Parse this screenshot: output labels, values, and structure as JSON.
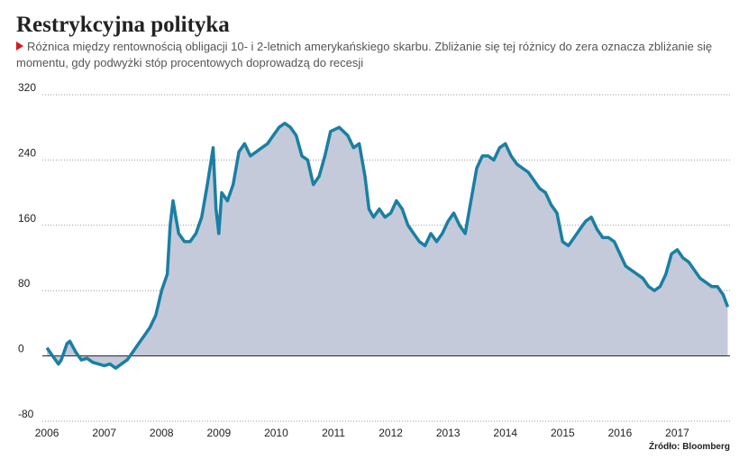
{
  "chart_data": {
    "type": "area",
    "title": "Restrykcyjna polityka",
    "subtitle": "Różnica między rentownością obligacji 10- i 2-letnich amerykańskiego skarbu. Zbliżanie się tej różnicy do zera oznacza zbliżanie się momentu, gdy podwyżki stóp procentowych doprowadzą do recesji",
    "source": "Źródło: Bloomberg",
    "x": [
      2006.0,
      2006.1,
      2006.2,
      2006.25,
      2006.35,
      2006.4,
      2006.5,
      2006.6,
      2006.7,
      2006.8,
      2006.9,
      2007.0,
      2007.1,
      2007.2,
      2007.3,
      2007.4,
      2007.5,
      2007.6,
      2007.7,
      2007.8,
      2007.9,
      2008.0,
      2008.1,
      2008.15,
      2008.2,
      2008.25,
      2008.3,
      2008.4,
      2008.5,
      2008.6,
      2008.7,
      2008.8,
      2008.9,
      2008.95,
      2009.0,
      2009.05,
      2009.15,
      2009.25,
      2009.35,
      2009.45,
      2009.55,
      2009.65,
      2009.75,
      2009.85,
      2009.95,
      2010.05,
      2010.15,
      2010.25,
      2010.35,
      2010.45,
      2010.55,
      2010.65,
      2010.75,
      2010.85,
      2010.95,
      2011.1,
      2011.25,
      2011.35,
      2011.45,
      2011.55,
      2011.62,
      2011.7,
      2011.8,
      2011.9,
      2012.0,
      2012.1,
      2012.2,
      2012.3,
      2012.4,
      2012.5,
      2012.6,
      2012.7,
      2012.8,
      2012.9,
      2013.0,
      2013.1,
      2013.2,
      2013.3,
      2013.4,
      2013.5,
      2013.6,
      2013.7,
      2013.8,
      2013.9,
      2014.0,
      2014.1,
      2014.2,
      2014.3,
      2014.4,
      2014.5,
      2014.6,
      2014.7,
      2014.8,
      2014.9,
      2015.0,
      2015.1,
      2015.2,
      2015.3,
      2015.4,
      2015.5,
      2015.6,
      2015.7,
      2015.8,
      2015.9,
      2016.0,
      2016.1,
      2016.2,
      2016.3,
      2016.4,
      2016.5,
      2016.6,
      2016.7,
      2016.8,
      2016.9,
      2017.0,
      2017.1,
      2017.2,
      2017.3,
      2017.4,
      2017.5,
      2017.6,
      2017.7,
      2017.8,
      2017.88
    ],
    "values": [
      10,
      0,
      -10,
      -5,
      15,
      18,
      5,
      -5,
      -3,
      -8,
      -10,
      -12,
      -10,
      -15,
      -10,
      -5,
      5,
      15,
      25,
      35,
      50,
      80,
      100,
      160,
      190,
      170,
      150,
      140,
      140,
      150,
      170,
      210,
      255,
      180,
      150,
      200,
      190,
      210,
      250,
      260,
      245,
      250,
      255,
      260,
      270,
      280,
      285,
      280,
      270,
      245,
      240,
      210,
      220,
      245,
      275,
      280,
      270,
      255,
      260,
      220,
      180,
      170,
      180,
      170,
      175,
      190,
      180,
      160,
      150,
      140,
      135,
      150,
      140,
      150,
      165,
      175,
      160,
      150,
      190,
      230,
      245,
      245,
      240,
      255,
      260,
      245,
      235,
      230,
      225,
      215,
      205,
      200,
      185,
      175,
      140,
      135,
      145,
      155,
      165,
      170,
      155,
      145,
      145,
      140,
      125,
      110,
      105,
      100,
      95,
      85,
      80,
      85,
      100,
      125,
      130,
      120,
      115,
      105,
      95,
      90,
      85,
      85,
      75,
      60
    ],
    "line_color": "#1a7fa3",
    "fill_color": "#c4cad9",
    "xlim": [
      2005.92,
      2017.92
    ],
    "xticks": [
      2006,
      2007,
      2008,
      2009,
      2010,
      2011,
      2012,
      2013,
      2014,
      2015,
      2016,
      2017
    ],
    "ylim": [
      -80,
      320
    ],
    "yticks": [
      -80,
      0,
      80,
      160,
      240,
      320
    ],
    "grid": true
  }
}
